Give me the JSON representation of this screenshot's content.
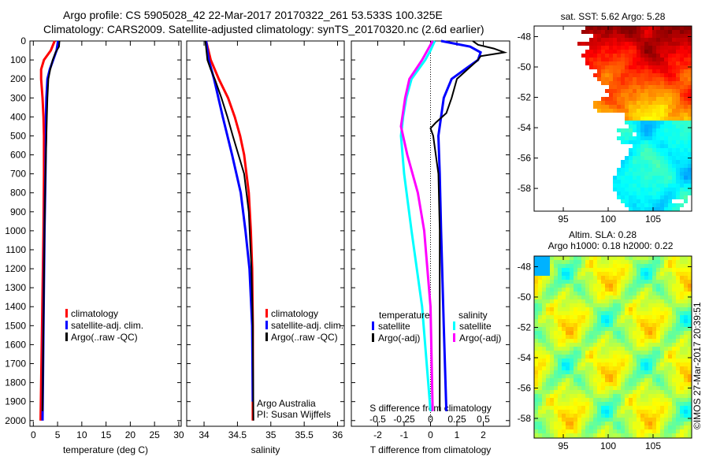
{
  "header": {
    "title_line1": "Argo profile: CS 5905028_42 22-Mar-2017 20170322_261 53.533S 100.325E",
    "title_line2": "Climatology: CARS2009. Satellite-adjusted climatology: synTS_20170320.nc (2.6d earlier)"
  },
  "credit": "©IMOS 27-Mar-2017 20:39:51",
  "colors": {
    "climatology": "#ff0000",
    "satellite": "#0000ff",
    "argo": "#000000",
    "s_satellite": "#00ffff",
    "s_argo": "#ff00ff"
  },
  "chart_data": [
    {
      "type": "line",
      "id": "temperature",
      "xlabel": "temperature (deg C)",
      "ylabel": "depth",
      "xlim": [
        -0.7,
        30.5
      ],
      "ylim": [
        2030,
        0
      ],
      "xticks": [
        0,
        5,
        10,
        15,
        20,
        25,
        30
      ],
      "yticks": [
        0,
        100,
        200,
        300,
        400,
        500,
        600,
        700,
        800,
        900,
        1000,
        1100,
        1200,
        1300,
        1400,
        1500,
        1600,
        1700,
        1800,
        1900,
        2000
      ],
      "legend": [
        "climatology",
        "satellite-adj. clim.",
        "Argo(..raw -QC)"
      ],
      "series": [
        {
          "name": "climatology",
          "color": "#ff0000",
          "depth": [
            0,
            50,
            100,
            150,
            200,
            300,
            400,
            500,
            700,
            1000,
            1500,
            2000
          ],
          "values": [
            4.4,
            3.6,
            2.2,
            1.6,
            1.6,
            1.9,
            2.1,
            2.2,
            2.2,
            2.1,
            1.8,
            1.5
          ]
        },
        {
          "name": "satellite-adj. clim.",
          "color": "#0000ff",
          "depth": [
            0,
            50,
            100,
            150,
            200,
            300,
            400,
            500,
            700,
            1000,
            1500,
            2000
          ],
          "values": [
            5.1,
            4.8,
            4.1,
            3.4,
            2.9,
            2.7,
            2.6,
            2.6,
            2.5,
            2.3,
            2.1,
            1.9
          ]
        },
        {
          "name": "Argo(..raw -QC)",
          "color": "#000000",
          "depth": [
            0,
            30,
            60,
            100,
            150,
            200,
            300,
            400,
            500,
            700,
            1000,
            1500,
            1950
          ],
          "values": [
            5.4,
            5.3,
            4.6,
            4.0,
            3.5,
            3.1,
            2.9,
            2.8,
            2.7,
            2.5,
            2.3,
            2.1,
            1.9
          ]
        }
      ]
    },
    {
      "type": "line",
      "id": "salinity",
      "xlabel": "salinity",
      "xlim": [
        33.74,
        36.1
      ],
      "ylim": [
        2030,
        0
      ],
      "xticks": [
        34,
        34.5,
        35,
        35.5,
        36
      ],
      "legend": [
        "climatology",
        "satellite-adj. clim.",
        "Argo(..raw -QC)"
      ],
      "annotation": [
        "Argo Australia",
        "PI: Susan Wijffels"
      ],
      "series": [
        {
          "name": "climatology",
          "color": "#ff0000",
          "depth": [
            0,
            100,
            200,
            300,
            400,
            500,
            600,
            800,
            1000,
            1200,
            1500,
            2000
          ],
          "values": [
            34.03,
            34.1,
            34.22,
            34.36,
            34.46,
            34.54,
            34.6,
            34.67,
            34.7,
            34.72,
            34.73,
            34.73
          ]
        },
        {
          "name": "satellite-adj. clim.",
          "color": "#0000ff",
          "depth": [
            0,
            100,
            200,
            400,
            600,
            800,
            1000,
            1200,
            1500,
            1900
          ],
          "values": [
            34.03,
            34.07,
            34.15,
            34.28,
            34.42,
            34.55,
            34.62,
            34.68,
            34.72,
            34.73
          ]
        },
        {
          "name": "Argo(..raw -QC)",
          "color": "#000000",
          "depth": [
            0,
            100,
            150,
            200,
            300,
            400,
            500,
            700,
            900,
            1200,
            1500,
            2000
          ],
          "values": [
            34.02,
            34.05,
            34.1,
            34.16,
            34.26,
            34.35,
            34.43,
            34.6,
            34.67,
            34.71,
            34.73,
            34.74
          ]
        }
      ]
    },
    {
      "type": "line",
      "id": "difference",
      "xlabel": "T difference from climatology",
      "x2label": "S difference from climatology",
      "xlim": [
        -3,
        3
      ],
      "x2lim": [
        -0.75,
        0.75
      ],
      "ylim": [
        2030,
        0
      ],
      "xticks": [
        -2,
        -1,
        0,
        1,
        2
      ],
      "x2ticks": [
        -0.5,
        -0.25,
        0,
        0.25,
        0.5
      ],
      "legend_headers": [
        "temperature",
        "salinity"
      ],
      "legend": [
        "satellite",
        "Argo(-adj)",
        "satellite",
        "Argo(-adj)"
      ],
      "series": [
        {
          "name": "T satellite",
          "axis": "T",
          "color": "#0000ff",
          "depth": [
            0,
            30,
            60,
            100,
            150,
            200,
            300,
            400,
            500,
            700,
            1000,
            1500,
            1950
          ],
          "values": [
            0.4,
            1.5,
            1.9,
            1.8,
            1.3,
            0.8,
            0.5,
            0.4,
            0.3,
            0.35,
            0.4,
            0.5,
            0.6
          ]
        },
        {
          "name": "T Argo(-adj)",
          "axis": "T",
          "color": "#000000",
          "depth": [
            0,
            20,
            40,
            60,
            80,
            100,
            150,
            200,
            300,
            380,
            430,
            460,
            500,
            700,
            1000,
            1500,
            1950
          ],
          "values": [
            1.6,
            1.8,
            2.4,
            2.8,
            1.9,
            1.8,
            1.4,
            1.0,
            0.8,
            0.6,
            0.2,
            0.0,
            0.1,
            0.3,
            0.35,
            0.35,
            0.35
          ]
        },
        {
          "name": "S satellite",
          "axis": "S",
          "color": "#00ffff",
          "depth": [
            0,
            50,
            100,
            200,
            300,
            400,
            500,
            700,
            1000,
            1400,
            1950
          ],
          "values": [
            0.04,
            0.0,
            -0.05,
            -0.18,
            -0.23,
            -0.26,
            -0.28,
            -0.25,
            -0.18,
            -0.08,
            0.0
          ]
        },
        {
          "name": "S Argo(-adj)",
          "axis": "S",
          "color": "#ff00ff",
          "depth": [
            0,
            100,
            200,
            300,
            450,
            600,
            800,
            1000,
            1400,
            1950
          ],
          "values": [
            0.02,
            -0.08,
            -0.2,
            -0.24,
            -0.28,
            -0.22,
            -0.12,
            -0.06,
            0.0,
            0.02
          ]
        }
      ]
    },
    {
      "type": "heatmap",
      "id": "sst-map",
      "title": "sat. SST: 5.62 Argo: 5.28",
      "xlim": [
        91.75,
        109.3
      ],
      "ylim": [
        -59.5,
        -47.3
      ],
      "xticks": [
        95,
        100,
        105
      ],
      "yticks": [
        -48,
        -50,
        -52,
        -54,
        -56,
        -58
      ]
    },
    {
      "type": "heatmap",
      "id": "sla-map",
      "title": "Altim. SLA: 0.28",
      "subtitle": "Argo h1000: 0.18 h2000: 0.22",
      "xlim": [
        91.75,
        109.3
      ],
      "ylim": [
        -59.3,
        -47.3
      ],
      "xticks": [
        95,
        100,
        105
      ],
      "yticks": [
        -48,
        -50,
        -52,
        -54,
        -56,
        -58
      ]
    }
  ]
}
